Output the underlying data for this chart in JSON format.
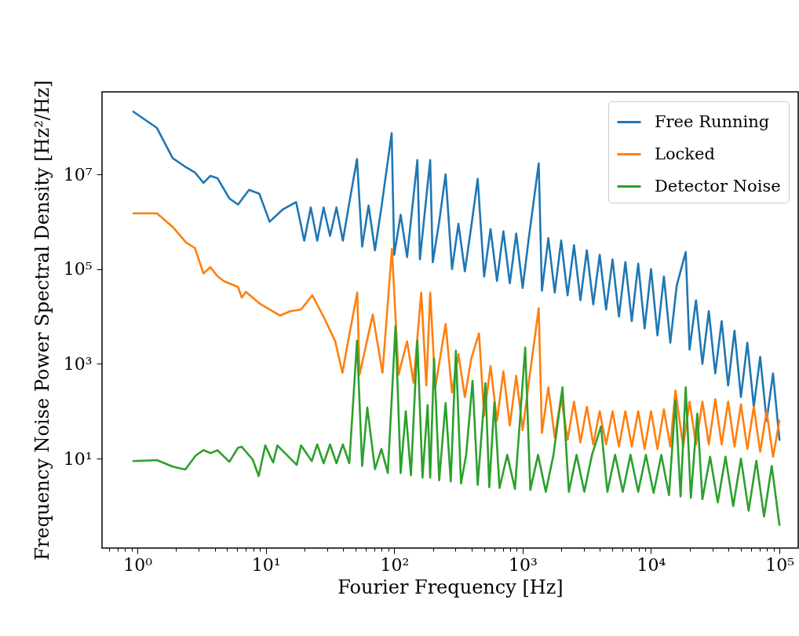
{
  "chart_data": {
    "type": "line",
    "xlabel": "Fourier Frequency [Hz]",
    "ylabel": "Frequency Noise Power Spectral Density [Hz²/Hz]",
    "log": "xy",
    "legend": "top right",
    "line_style": "solid",
    "xlim": [
      0.53,
      140000
    ],
    "ylim": [
      0.13,
      550000000.0
    ],
    "xticks": [
      {
        "value": 0.6,
        "label": null
      },
      {
        "value": 0.7,
        "label": null
      },
      {
        "value": 0.8,
        "label": null
      },
      {
        "value": 0.9,
        "label": null
      },
      {
        "value": 1,
        "label": "10⁰"
      },
      {
        "value": 2,
        "label": null
      },
      {
        "value": 3,
        "label": null
      },
      {
        "value": 4,
        "label": null
      },
      {
        "value": 5,
        "label": null
      },
      {
        "value": 6,
        "label": null
      },
      {
        "value": 7,
        "label": null
      },
      {
        "value": 8,
        "label": null
      },
      {
        "value": 9,
        "label": null
      },
      {
        "value": 10,
        "label": "10¹"
      },
      {
        "value": 20,
        "label": null
      },
      {
        "value": 30,
        "label": null
      },
      {
        "value": 40,
        "label": null
      },
      {
        "value": 50,
        "label": null
      },
      {
        "value": 60,
        "label": null
      },
      {
        "value": 70,
        "label": null
      },
      {
        "value": 80,
        "label": null
      },
      {
        "value": 90,
        "label": null
      },
      {
        "value": 100,
        "label": "10²"
      },
      {
        "value": 200,
        "label": null
      },
      {
        "value": 300,
        "label": null
      },
      {
        "value": 400,
        "label": null
      },
      {
        "value": 500,
        "label": null
      },
      {
        "value": 600,
        "label": null
      },
      {
        "value": 700,
        "label": null
      },
      {
        "value": 800,
        "label": null
      },
      {
        "value": 900,
        "label": null
      },
      {
        "value": 1000,
        "label": "10³"
      },
      {
        "value": 2000,
        "label": null
      },
      {
        "value": 3000,
        "label": null
      },
      {
        "value": 4000,
        "label": null
      },
      {
        "value": 5000,
        "label": null
      },
      {
        "value": 6000,
        "label": null
      },
      {
        "value": 7000,
        "label": null
      },
      {
        "value": 8000,
        "label": null
      },
      {
        "value": 9000,
        "label": null
      },
      {
        "value": 10000,
        "label": "10⁴"
      },
      {
        "value": 20000,
        "label": null
      },
      {
        "value": 30000,
        "label": null
      },
      {
        "value": 40000,
        "label": null
      },
      {
        "value": 50000,
        "label": null
      },
      {
        "value": 60000,
        "label": null
      },
      {
        "value": 70000,
        "label": null
      },
      {
        "value": 80000,
        "label": null
      },
      {
        "value": 90000,
        "label": null
      },
      {
        "value": 100000,
        "label": "10⁵"
      }
    ],
    "yticks": [
      {
        "value": 10,
        "label": "10¹"
      },
      {
        "value": 1000,
        "label": "10³"
      },
      {
        "value": 100000,
        "label": "10⁵"
      },
      {
        "value": 10000000,
        "label": "10⁷"
      }
    ],
    "series": [
      {
        "name": "Free Running",
        "color": "#1f77b4",
        "x": [
          0.93,
          1.42,
          1.88,
          2.4,
          2.8,
          3.27,
          3.7,
          4.2,
          5.2,
          6.07,
          7.4,
          8.9,
          10.7,
          13.5,
          17.2,
          19.9,
          22.39,
          25.12,
          28.18,
          31.62,
          35.48,
          39.81,
          44.67,
          51.29,
          56.23,
          63.1,
          70.79,
          79.43,
          95.5,
          100,
          112.2,
          125.9,
          151.4,
          158.5,
          190.5,
          199.5,
          223.9,
          251.2,
          281.8,
          316.2,
          354.8,
          398.1,
          446.7,
          501.2,
          562.3,
          631,
          707.9,
          794.3,
          891.3,
          1000,
          1122,
          1334,
          1413,
          1585,
          1778,
          1995,
          2239,
          2512,
          2818,
          3162,
          3548,
          3981,
          4467,
          5012,
          5623,
          6310,
          7079,
          7943,
          8913,
          10000,
          11220,
          12590,
          14130,
          15850,
          18620,
          19950,
          22390,
          25120,
          28180,
          31620,
          35480,
          39810,
          44670,
          50120,
          56230,
          63100,
          70790,
          79430,
          89130,
          100000
        ],
        "values": [
          210000000.0,
          95000000.0,
          22000000.0,
          14000000.0,
          11000000.0,
          6600000.0,
          9300000.0,
          8300000.0,
          3100000.0,
          2300000.0,
          4700000.0,
          3900000.0,
          1000000.0,
          1800000.0,
          2600000.0,
          400000.0,
          2000000.0,
          400000.0,
          2000000.0,
          500000.0,
          2000000.0,
          400000.0,
          2500000.0,
          21000000.0,
          300000.0,
          2200000.0,
          250000.0,
          2000000.0,
          74000000.0,
          200000.0,
          1400000.0,
          180000.0,
          20000000.0,
          160000.0,
          20000000.0,
          140000.0,
          1000000.0,
          10000000.0,
          100000.0,
          900000.0,
          90000.0,
          800000.0,
          8000000.0,
          70000.0,
          700000.0,
          56000.0,
          630000.0,
          50000.0,
          560000.0,
          40000.0,
          500000.0,
          17000000.0,
          35000.0,
          450000.0,
          32000.0,
          400000.0,
          28000.0,
          320000.0,
          22000.0,
          250000.0,
          18000.0,
          200000.0,
          14000.0,
          160000.0,
          10000.0,
          140000.0,
          8000.0,
          130000.0,
          5600.0,
          100000.0,
          4000.0,
          70000.0,
          2800.0,
          45000.0,
          230000.0,
          2000.0,
          22000.0,
          1000.0,
          13000.0,
          630,
          8000.0,
          350,
          5000.0,
          200,
          2800.0,
          125,
          1400.0,
          63,
          630,
          25
        ]
      },
      {
        "name": "Locked",
        "color": "#ff7f0e",
        "x": [
          0.93,
          1.42,
          1.88,
          2.4,
          2.8,
          3.27,
          3.7,
          4.2,
          4.7,
          6.07,
          6.5,
          7.0,
          8.9,
          12.9,
          15.6,
          18.8,
          23,
          28.5,
          34.7,
          39.5,
          43.5,
          51.5,
          53.7,
          68,
          81,
          96,
          108,
          125.9,
          141.3,
          162.2,
          177.8,
          190.5,
          208.9,
          251.2,
          281.8,
          316.2,
          354.8,
          398.1,
          457.1,
          501.2,
          562.3,
          631,
          707.9,
          794.3,
          891.3,
          1000,
          1122,
          1334,
          1413,
          1585,
          1778,
          1995,
          2239,
          2512,
          2818,
          3162,
          3548,
          3981,
          4467,
          5012,
          5623,
          6310,
          7079,
          7943,
          8913,
          10000,
          11220,
          12590,
          14130,
          15490,
          17780,
          19950,
          22390,
          25120,
          28180,
          31620,
          35480,
          39810,
          44670,
          50120,
          56230,
          63100,
          70790,
          79430,
          89130,
          100000
        ],
        "values": [
          1500000.0,
          1500000.0,
          780000.0,
          360000.0,
          280000.0,
          81000.0,
          110000.0,
          71000.0,
          56000.0,
          42000.0,
          25000.0,
          33000.0,
          19000.0,
          10500.0,
          13000.0,
          14000.0,
          28000.0,
          9300.0,
          3000.0,
          650,
          2800.0,
          32000.0,
          590,
          11000.0,
          650,
          270000.0,
          590,
          3000.0,
          400,
          32000.0,
          350,
          32000.0,
          320,
          7000.0,
          250,
          1600.0,
          200,
          1300.0,
          4400.0,
          80,
          900,
          63,
          700,
          50,
          560,
          40,
          450,
          15000.0,
          35,
          320,
          28,
          200,
          25,
          160,
          22,
          125,
          20,
          100,
          20,
          100,
          18,
          100,
          18,
          100,
          16,
          100,
          16,
          110,
          18,
          275,
          18,
          160,
          20,
          160,
          20,
          180,
          20,
          160,
          18,
          140,
          16,
          125,
          14,
          100,
          11,
          63
        ]
      },
      {
        "name": "Detector Noise",
        "color": "#2ca02c",
        "x": [
          0.93,
          1.42,
          1.88,
          2.36,
          2.84,
          3.27,
          3.7,
          4.2,
          5.2,
          6.07,
          6.5,
          7.9,
          8.8,
          9.9,
          11.4,
          12.3,
          17.4,
          18.8,
          22.8,
          25.12,
          28.18,
          31.62,
          35.48,
          39.81,
          44.67,
          51.29,
          56.23,
          61.66,
          70.79,
          79.43,
          89.13,
          102.3,
          112.2,
          123,
          134.9,
          151.4,
          166,
          182,
          190.5,
          204.2,
          223.9,
          251.2,
          275.4,
          302,
          331.1,
          363.1,
          407.4,
          446.7,
          512.9,
          549.5,
          602.6,
          660.7,
          758.6,
          871,
          1047,
          1148,
          1318,
          1514,
          1738,
          2042,
          2291,
          2630,
          3020,
          3467,
          4074,
          4571,
          5248,
          6026,
          6918,
          7943,
          9120,
          10470,
          12020,
          13800,
          15490,
          16980,
          18620,
          20420,
          22910,
          25120,
          28840,
          33110,
          38020,
          43650,
          50120,
          57540,
          66070,
          75860,
          87100,
          100000
        ],
        "values": [
          8.9,
          9.3,
          6.8,
          5.9,
          11.6,
          15.2,
          13.1,
          15,
          8.6,
          17,
          17.8,
          9.6,
          4.3,
          19,
          8.3,
          19,
          7.4,
          19,
          8.9,
          20,
          8,
          20,
          8,
          20,
          8,
          3100.0,
          7,
          120,
          6,
          16,
          5,
          6200.0,
          5,
          100,
          4.5,
          3100.0,
          4,
          135,
          4,
          1300.0,
          3.5,
          150,
          3.3,
          1900.0,
          3,
          12,
          440,
          2.8,
          390,
          2.5,
          155,
          2.4,
          12,
          2.3,
          2200.0,
          2.2,
          12,
          2,
          12,
          320,
          2,
          12,
          2,
          12,
          48,
          2,
          12,
          2,
          12,
          2,
          12,
          1.9,
          12,
          1.7,
          170,
          1.6,
          320,
          1.5,
          89,
          1.4,
          11,
          1.2,
          11,
          1,
          10,
          0.8,
          9,
          0.6,
          7,
          0.4
        ]
      }
    ]
  }
}
